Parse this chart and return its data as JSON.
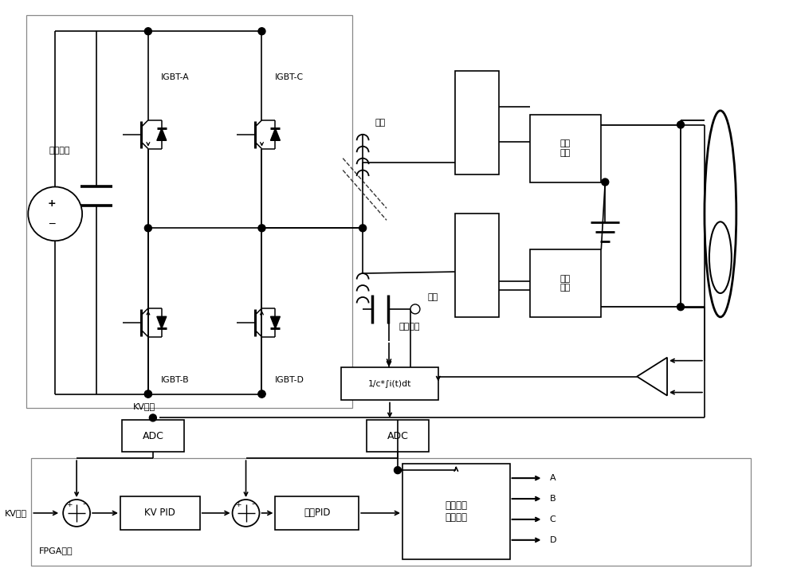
{
  "bg_color": "#ffffff",
  "labels": {
    "dc_bus": "直流母线",
    "igbt_a": "IGBT-A",
    "igbt_b": "IGBT-B",
    "igbt_c": "IGBT-C",
    "igbt_d": "IGBT-D",
    "inductor": "电感",
    "capacitor": "电容",
    "rect1": "整流\n倍压",
    "rect2": "整洁\n倍压",
    "current_fb": "电流反馈",
    "integral_box": "1/c*∫i(t)dt",
    "kv_fb": "KV反馈",
    "adc1": "ADC",
    "adc2": "ADC",
    "kv_set": "KV给定",
    "kv_pid": "KV PID",
    "current_pid": "电流PID",
    "phase_ctrl": "移相控制\n信号生成",
    "fpga": "FPGA单元",
    "out_A": "A",
    "out_B": "B",
    "out_C": "C",
    "out_D": "D"
  }
}
